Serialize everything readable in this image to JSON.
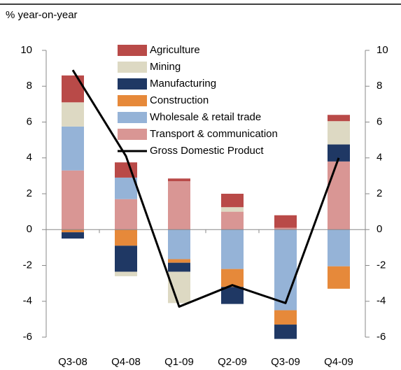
{
  "chart_data": {
    "type": "bar",
    "stacked": true,
    "subtitle": "% year-on-year",
    "categories": [
      "Q3-08",
      "Q4-08",
      "Q1-09",
      "Q2-09",
      "Q3-09",
      "Q4-09"
    ],
    "series": [
      {
        "name": "Agriculture",
        "color": "#b94a48",
        "values": [
          1.5,
          0.85,
          0.15,
          0.75,
          0.7,
          0.35
        ]
      },
      {
        "name": "Mining",
        "color": "#ddd9c3",
        "values": [
          1.35,
          -0.25,
          -1.75,
          0.25,
          0,
          1.3
        ]
      },
      {
        "name": "Manufacturing",
        "color": "#1f3864",
        "values": [
          -0.35,
          -1.45,
          -0.5,
          -0.95,
          -0.8,
          0.95
        ]
      },
      {
        "name": "Construction",
        "color": "#e6893a",
        "values": [
          -0.15,
          -0.9,
          -0.2,
          -1.0,
          -0.8,
          -1.25
        ]
      },
      {
        "name": "Wholesale & retail trade",
        "color": "#95b3d7",
        "values": [
          2.45,
          1.2,
          -1.65,
          -2.2,
          -4.5,
          -2.05
        ]
      },
      {
        "name": "Transport & communication",
        "color": "#d99694",
        "values": [
          3.3,
          1.7,
          2.7,
          1.0,
          0.1,
          3.8
        ]
      },
      {
        "name": "Gross Domestic Product",
        "color": "#000000",
        "type": "line",
        "values": [
          8.9,
          4.1,
          -4.3,
          -3.1,
          -4.1,
          4.0
        ]
      }
    ],
    "ylim": [
      -6,
      10
    ],
    "yticks": [
      -6,
      -4,
      -2,
      0,
      2,
      4,
      6,
      8,
      10
    ],
    "y2lim": [
      -6,
      10
    ],
    "y2ticks": [
      -6,
      -4,
      -2,
      0,
      2,
      4,
      6,
      8,
      10
    ],
    "grid": false
  }
}
